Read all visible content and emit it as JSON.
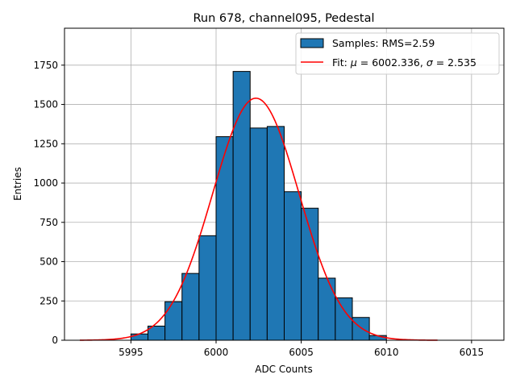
{
  "chart_data": {
    "type": "bar",
    "subtype": "histogram",
    "title": "Run 678, channel095, Pedestal",
    "xlabel": "ADC Counts",
    "ylabel": "Entries",
    "xlim": [
      5991.1,
      6016.9
    ],
    "ylim": [
      0,
      1985
    ],
    "xticks": [
      5995,
      6000,
      6005,
      6010,
      6015
    ],
    "yticks": [
      0,
      250,
      500,
      750,
      1000,
      1250,
      1500,
      1750
    ],
    "grid": true,
    "legend_position": "top-right",
    "bar_color": "#1f77b4",
    "bar_edge_color": "#000000",
    "fit_color": "#ff0000",
    "bins": [
      {
        "left": 5995,
        "right": 5996,
        "count": 40
      },
      {
        "left": 5996,
        "right": 5997,
        "count": 90
      },
      {
        "left": 5997,
        "right": 5998,
        "count": 245
      },
      {
        "left": 5998,
        "right": 5999,
        "count": 425
      },
      {
        "left": 5999,
        "right": 6000,
        "count": 665
      },
      {
        "left": 6000,
        "right": 6001,
        "count": 1295
      },
      {
        "left": 6001,
        "right": 6002,
        "count": 1710
      },
      {
        "left": 6002,
        "right": 6003,
        "count": 1350
      },
      {
        "left": 6003,
        "right": 6004,
        "count": 1360
      },
      {
        "left": 6004,
        "right": 6005,
        "count": 945
      },
      {
        "left": 6005,
        "right": 6006,
        "count": 840
      },
      {
        "left": 6006,
        "right": 6007,
        "count": 395
      },
      {
        "left": 6007,
        "right": 6008,
        "count": 270
      },
      {
        "left": 6008,
        "right": 6009,
        "count": 145
      },
      {
        "left": 6009,
        "right": 6010,
        "count": 30
      }
    ],
    "fit": {
      "type": "gaussian",
      "mu": 6002.336,
      "sigma": 2.535,
      "amplitude": 1540,
      "x_range": [
        5992,
        6013
      ]
    },
    "legend": {
      "samples_label": "Samples: RMS=2.59",
      "fit_label_prefix": "Fit: ",
      "fit_mu_symbol": "μ",
      "fit_mu_text": " = 6002.336, ",
      "fit_sigma_symbol": "σ",
      "fit_sigma_text": " = 2.535"
    }
  }
}
